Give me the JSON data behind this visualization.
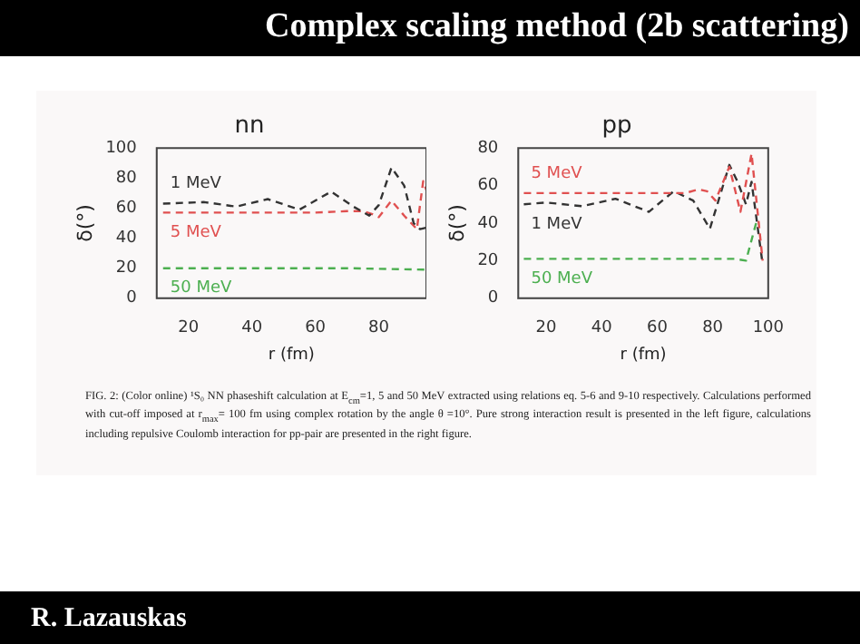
{
  "chart_data": [
    {
      "type": "other",
      "title": "Complex scaling method (2b scattering)",
      "annotations": [
        "R. Lazauskas"
      ]
    },
    {
      "type": "line",
      "title": "nn",
      "xlabel": "r (fm)",
      "ylabel": "δ(°)",
      "xlim": [
        10,
        95
      ],
      "xticks": [
        20,
        40,
        60,
        80
      ],
      "ylim": [
        0,
        100
      ],
      "yticks": [
        0,
        20,
        40,
        60,
        80,
        100
      ],
      "line_style": "dashed",
      "marker": "none",
      "grid": false,
      "legend": false,
      "series": [
        {
          "name": "1 MeV",
          "color": "#333333",
          "x": [
            12,
            25,
            35,
            45,
            55,
            65,
            72,
            77,
            80,
            84,
            88,
            91,
            93,
            95
          ],
          "values": [
            63,
            64,
            61,
            66,
            59,
            71,
            61,
            55,
            62,
            87,
            75,
            50,
            46,
            47
          ]
        },
        {
          "name": "5 MeV",
          "color": "#e05050",
          "x": [
            12,
            30,
            50,
            60,
            70,
            75,
            78,
            80,
            84,
            88,
            92,
            94,
            95
          ],
          "values": [
            57,
            57,
            57,
            57,
            58,
            58,
            56,
            54,
            65,
            55,
            46,
            78,
            72
          ]
        },
        {
          "name": "50 MeV",
          "color": "#4caf50",
          "x": [
            12,
            40,
            70,
            95
          ],
          "values": [
            20,
            20,
            20,
            19
          ]
        }
      ]
    },
    {
      "type": "line",
      "title": "pp",
      "xlabel": "r (fm)",
      "ylabel": "δ(°)",
      "xlim": [
        10,
        100
      ],
      "xticks": [
        20,
        40,
        60,
        80,
        100
      ],
      "ylim": [
        0,
        80
      ],
      "yticks": [
        0,
        20,
        40,
        60,
        80
      ],
      "line_style": "dashed",
      "marker": "none",
      "grid": false,
      "legend": false,
      "series": [
        {
          "name": "5 MeV",
          "color": "#e05050",
          "x": [
            12,
            40,
            70,
            75,
            78,
            81,
            86,
            90,
            94,
            98
          ],
          "values": [
            56,
            56,
            56,
            58,
            57,
            52,
            70,
            46,
            77,
            20
          ]
        },
        {
          "name": "1 MeV",
          "color": "#333333",
          "x": [
            12,
            20,
            33,
            45,
            57,
            66,
            73,
            79,
            86,
            89,
            92,
            94,
            98
          ],
          "values": [
            50,
            51,
            49,
            53,
            46,
            57,
            52,
            37,
            71,
            62,
            50,
            62,
            18
          ]
        },
        {
          "name": "50 MeV",
          "color": "#4caf50",
          "x": [
            12,
            50,
            88,
            92,
            96
          ],
          "values": [
            21,
            21,
            21,
            20,
            42
          ]
        }
      ]
    },
    {
      "type": "other",
      "annotations": [
        "FIG. 2: (Color online) ¹S₀ NN phaseshift calculation at E$_{cm}$=1, 5 and 50 MeV extracted using relations eq. 5-6 and 9-10 respectively. Calculations performed with cut-off imposed at r$_{max}$= 100 fm using complex rotation by the angle θ =10°. Pure strong interaction result is presented in the left figure, calculations including repulsive Coulomb interaction for pp-pair are presented in the right figure."
      ]
    }
  ]
}
